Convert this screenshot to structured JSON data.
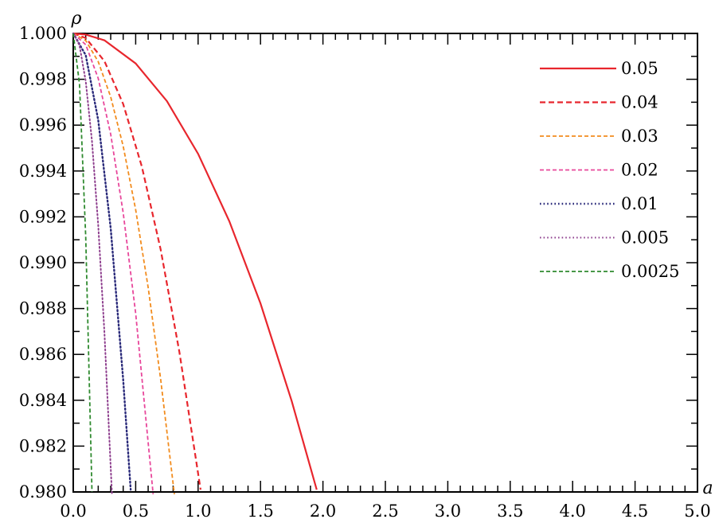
{
  "chart_data": {
    "type": "line",
    "title": "",
    "xlabel": "a",
    "ylabel": "ρ",
    "xlim": [
      0,
      5
    ],
    "ylim": [
      0.98,
      1.0
    ],
    "x_ticks": [
      "0.0",
      "0.5",
      "1.0",
      "1.5",
      "2.0",
      "2.5",
      "3.0",
      "3.5",
      "4.0",
      "4.5",
      "5.0"
    ],
    "y_ticks": [
      "0.980",
      "0.982",
      "0.984",
      "0.986",
      "0.988",
      "0.990",
      "0.992",
      "0.994",
      "0.996",
      "0.998",
      "1.000"
    ],
    "grid": false,
    "legend_position": "top-right",
    "series": [
      {
        "name": "0.05",
        "color": "#e8262d",
        "dash": "solid",
        "x": [
          0,
          0.1,
          0.25,
          0.5,
          0.75,
          1.0,
          1.25,
          1.5,
          1.75,
          1.95
        ],
        "y": [
          1.0,
          0.99995,
          0.9997,
          0.99869,
          0.99705,
          0.99475,
          0.99181,
          0.98822,
          0.98396,
          0.9801
        ]
      },
      {
        "name": "0.04",
        "color": "#e8262d",
        "dash": "dashed",
        "x": [
          0,
          0.1,
          0.25,
          0.4,
          0.55,
          0.7,
          0.85,
          1.02
        ],
        "y": [
          1.0,
          0.9998,
          0.99879,
          0.99692,
          0.99418,
          0.99058,
          0.98611,
          0.9801
        ]
      },
      {
        "name": "0.03",
        "color": "#f28c1e",
        "dash": "dashed",
        "x": [
          0,
          0.1,
          0.2,
          0.3,
          0.4,
          0.5,
          0.6,
          0.7,
          0.81
        ],
        "y": [
          1.0,
          0.99969,
          0.99877,
          0.99723,
          0.99508,
          0.99231,
          0.98892,
          0.98492,
          0.9799
        ]
      },
      {
        "name": "0.02",
        "color": "#e8479b",
        "dash": "dashed",
        "x": [
          0,
          0.1,
          0.2,
          0.3,
          0.4,
          0.5,
          0.64
        ],
        "y": [
          1.0,
          0.99951,
          0.99804,
          0.9956,
          0.99218,
          0.98779,
          0.9799
        ]
      },
      {
        "name": "0.01",
        "color": "#2a2a7a",
        "dash": "dotted",
        "x": [
          0,
          0.1,
          0.2,
          0.3,
          0.4,
          0.46
        ],
        "y": [
          1.0,
          0.99905,
          0.99622,
          0.9915,
          0.98489,
          0.9801
        ]
      },
      {
        "name": "0.005",
        "color": "#8e3f8e",
        "dash": "dotted",
        "x": [
          0,
          0.05,
          0.1,
          0.15,
          0.2,
          0.25,
          0.31
        ],
        "y": [
          1.0,
          0.99948,
          0.99791,
          0.9953,
          0.99164,
          0.98693,
          0.9799
        ]
      },
      {
        "name": "0.0025",
        "color": "#2f8a2f",
        "dash": "dashed",
        "x": [
          0,
          0.05,
          0.1,
          0.15
        ],
        "y": [
          1.0,
          0.99778,
          0.99111,
          0.98
        ]
      }
    ]
  }
}
